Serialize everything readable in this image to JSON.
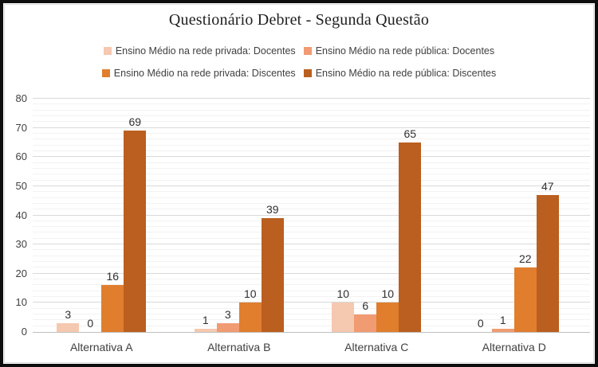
{
  "title": "Questionário Debret - Segunda Questão",
  "chart_data": {
    "type": "bar",
    "title": "Questionário Debret - Segunda Questão",
    "categories": [
      "Alternativa A",
      "Alternativa B",
      "Alternativa C",
      "Alternativa D"
    ],
    "series": [
      {
        "name": "Ensino Médio na rede privada: Docentes",
        "color": "#F5C8B0",
        "values": [
          3,
          1,
          10,
          0
        ]
      },
      {
        "name": "Ensino Médio na rede pública: Docentes",
        "color": "#F09B72",
        "values": [
          0,
          3,
          6,
          1
        ]
      },
      {
        "name": "Ensino Médio na rede privada: Discentes",
        "color": "#E07E2E",
        "values": [
          16,
          10,
          10,
          22
        ]
      },
      {
        "name": "Ensino Médio na rede pública: Discentes",
        "color": "#BA5F1F",
        "values": [
          69,
          39,
          65,
          47
        ]
      }
    ],
    "ylim": [
      0,
      80
    ],
    "yticks": [
      0,
      10,
      20,
      30,
      40,
      50,
      60,
      70,
      80
    ],
    "minor_gridline_step": 2,
    "grid": true,
    "data_labels": true,
    "legend_position": "top",
    "legend_rows": [
      [
        0,
        1
      ],
      [
        2,
        3
      ]
    ]
  },
  "colors": {
    "grid_major": "#d9d9d9",
    "grid_minor": "#f2f2f2",
    "axis_line": "#c0c0c0",
    "text": "#404040",
    "title_text": "#1f1f1f"
  }
}
